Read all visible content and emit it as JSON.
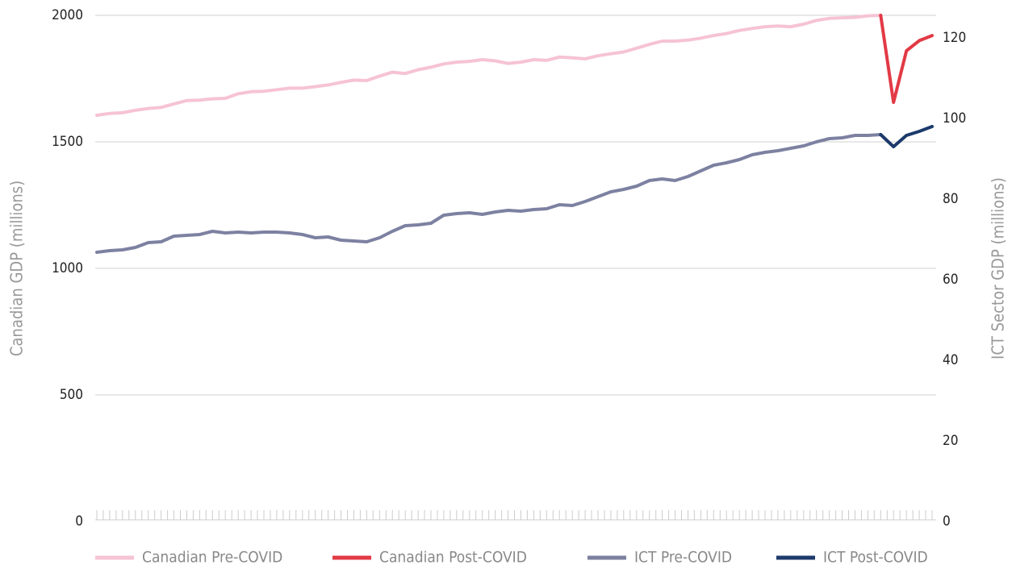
{
  "chart_data": {
    "type": "line",
    "ylabel": "Canadian GDP (millions)",
    "y2label": "ICT Sector GDP (millions)",
    "categories": [
      null,
      null,
      null,
      null,
      null,
      null,
      null,
      null,
      null,
      null,
      null,
      null,
      null,
      null,
      null,
      null,
      null,
      null,
      null,
      null,
      null,
      null,
      null,
      null,
      null,
      null,
      null,
      null,
      null,
      null,
      null,
      null,
      null,
      null,
      null,
      null,
      null,
      null,
      null,
      null,
      null,
      null,
      null,
      null,
      null,
      null,
      null,
      null,
      null,
      null,
      null,
      null,
      null,
      null,
      null,
      null,
      null,
      null,
      null,
      null,
      null,
      null,
      null,
      null,
      null,
      null
    ],
    "series": [
      {
        "name": "Canadian Pre-COVID",
        "color": "#f6c3d4",
        "axis": "y",
        "values": [
          1605,
          1612,
          1615,
          1625,
          1632,
          1636,
          1650,
          1663,
          1665,
          1670,
          1672,
          1690,
          1698,
          1700,
          1706,
          1712,
          1712,
          1718,
          1725,
          1735,
          1744,
          1742,
          1760,
          1775,
          1770,
          1785,
          1795,
          1808,
          1815,
          1818,
          1825,
          1820,
          1810,
          1815,
          1825,
          1822,
          1835,
          1832,
          1828,
          1840,
          1848,
          1855,
          1870,
          1885,
          1898,
          1898,
          1902,
          1910,
          1920,
          1928,
          1940,
          1948,
          1955,
          1958,
          1955,
          1965,
          1980,
          1988,
          1990,
          1992,
          1998,
          2000,
          null,
          null,
          null,
          null
        ]
      },
      {
        "name": "Canadian Post-COVID",
        "color": "#e23a45",
        "axis": "y",
        "values": [
          null,
          null,
          null,
          null,
          null,
          null,
          null,
          null,
          null,
          null,
          null,
          null,
          null,
          null,
          null,
          null,
          null,
          null,
          null,
          null,
          null,
          null,
          null,
          null,
          null,
          null,
          null,
          null,
          null,
          null,
          null,
          null,
          null,
          null,
          null,
          null,
          null,
          null,
          null,
          null,
          null,
          null,
          null,
          null,
          null,
          null,
          null,
          null,
          null,
          null,
          null,
          null,
          null,
          null,
          null,
          null,
          null,
          null,
          null,
          null,
          null,
          2000,
          1656,
          1860,
          1900,
          1920
        ]
      },
      {
        "name": "ICT Pre-COVID",
        "color": "#7d81a1",
        "axis": "y2",
        "values": [
          66.8,
          67.2,
          67.4,
          68.0,
          69.2,
          69.4,
          70.8,
          71.0,
          71.2,
          72.0,
          71.6,
          71.8,
          71.6,
          71.8,
          71.8,
          71.6,
          71.2,
          70.4,
          70.6,
          69.8,
          69.6,
          69.4,
          70.4,
          72.0,
          73.4,
          73.6,
          74.0,
          76.0,
          76.4,
          76.6,
          76.2,
          76.8,
          77.2,
          77.0,
          77.4,
          77.6,
          78.6,
          78.4,
          79.4,
          80.6,
          81.8,
          82.4,
          83.2,
          84.6,
          85.0,
          84.6,
          85.6,
          87.0,
          88.4,
          89.0,
          89.8,
          91.0,
          91.6,
          92.0,
          92.6,
          93.2,
          94.2,
          95.0,
          95.2,
          95.8,
          95.8,
          96.0,
          null,
          null,
          null,
          null
        ]
      },
      {
        "name": "ICT Post-COVID",
        "color": "#1c3a6b",
        "axis": "y2",
        "values": [
          null,
          null,
          null,
          null,
          null,
          null,
          null,
          null,
          null,
          null,
          null,
          null,
          null,
          null,
          null,
          null,
          null,
          null,
          null,
          null,
          null,
          null,
          null,
          null,
          null,
          null,
          null,
          null,
          null,
          null,
          null,
          null,
          null,
          null,
          null,
          null,
          null,
          null,
          null,
          null,
          null,
          null,
          null,
          null,
          null,
          null,
          null,
          null,
          null,
          null,
          null,
          null,
          null,
          null,
          null,
          null,
          null,
          null,
          null,
          null,
          null,
          96.0,
          93.0,
          95.8,
          96.8,
          98.0
        ]
      }
    ],
    "ylim": [
      0,
      2000
    ],
    "yticks": [
      0,
      500,
      1000,
      1500,
      2000
    ],
    "y2lim": [
      0,
      125.6
    ],
    "y2ticks": [
      0,
      20,
      40,
      60,
      80,
      100,
      120
    ],
    "grid": true,
    "legend": "bottom"
  }
}
